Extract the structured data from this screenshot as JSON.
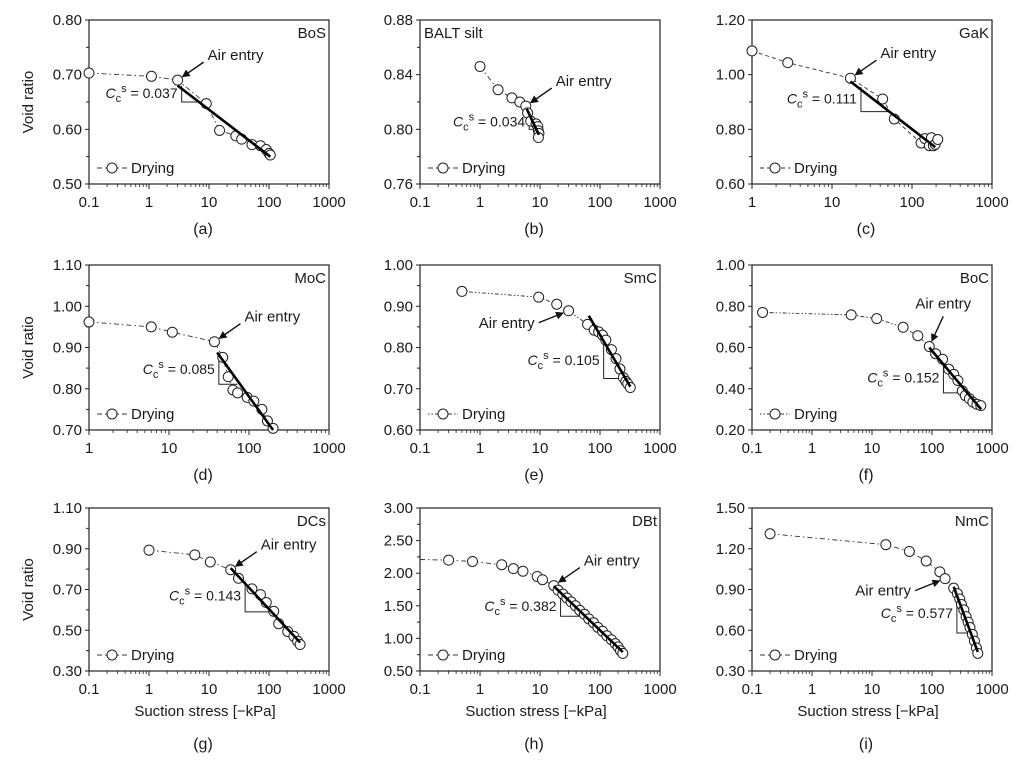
{
  "figure": {
    "y_axis_title": "Void ratio",
    "x_axis_title": "Suction stress [−kPa]",
    "legend_label": "Drying",
    "air_entry_label": "Air entry",
    "cc_symbol": "C",
    "cc_sub": "c",
    "cc_sup": "s"
  },
  "chart_data": [
    {
      "type": "scatter",
      "panel": "(a)",
      "soil": "BoS",
      "xscale": "log",
      "xlim": [
        0.1,
        1000
      ],
      "xticks": [
        "0.1",
        "1",
        "10",
        "100",
        "1000"
      ],
      "ylim": [
        0.5,
        0.8
      ],
      "yticks": [
        "0.50",
        "0.60",
        "0.70",
        "0.80"
      ],
      "ylabel": "Void ratio",
      "xlabel": "",
      "legend": "Drying",
      "line_style": "dash-dot",
      "x": [
        0.1,
        1.1,
        3.0,
        9.0,
        15,
        28,
        35,
        52,
        72,
        90,
        100,
        105
      ],
      "y": [
        0.703,
        0.697,
        0.69,
        0.647,
        0.598,
        0.588,
        0.582,
        0.572,
        0.57,
        0.563,
        0.556,
        0.553
      ],
      "air_entry": {
        "x": 3.0,
        "y": 0.69
      },
      "fit": {
        "x": [
          3.0,
          105
        ],
        "y": [
          0.68,
          0.55
        ]
      },
      "triangle": {
        "x": [
          3.5,
          10
        ],
        "y": [
          0.68,
          0.65
        ]
      },
      "cc_value": "0.037",
      "air_entry_text_pos": "right"
    },
    {
      "type": "scatter",
      "panel": "(b)",
      "soil": "BALT silt",
      "xscale": "log",
      "xlim": [
        0.1,
        1000
      ],
      "xticks": [
        "0.1",
        "1",
        "10",
        "100",
        "1000"
      ],
      "ylim": [
        0.76,
        0.88
      ],
      "yticks": [
        "0.76",
        "0.80",
        "0.84",
        "0.88"
      ],
      "ylabel": "",
      "xlabel": "",
      "legend": "Drying",
      "line_style": "dash-dot",
      "x": [
        1.0,
        2.0,
        3.4,
        4.6,
        5.8,
        6.2,
        7.0,
        8.6,
        9.2,
        9.4,
        9.6,
        9.4
      ],
      "y": [
        0.846,
        0.829,
        0.823,
        0.82,
        0.817,
        0.812,
        0.806,
        0.804,
        0.802,
        0.799,
        0.797,
        0.794
      ],
      "air_entry": {
        "x": 5.8,
        "y": 0.817
      },
      "fit": {
        "x": [
          6.0,
          9.6
        ],
        "y": [
          0.815,
          0.796
        ]
      },
      "triangle": {
        "x": [
          6.6,
          9.0
        ],
        "y": [
          0.81,
          0.8
        ]
      },
      "cc_value": "0.034",
      "air_entry_text_pos": "right"
    },
    {
      "type": "scatter",
      "panel": "(c)",
      "soil": "GaK",
      "xscale": "log",
      "xlim": [
        1,
        1000
      ],
      "xticks": [
        "1",
        "10",
        "100",
        "1000"
      ],
      "ylim": [
        0.6,
        1.2
      ],
      "yticks": [
        "0.60",
        "0.80",
        "1.00",
        "1.20"
      ],
      "ylabel": "",
      "xlabel": "",
      "legend": "Drying",
      "line_style": "dashed",
      "x": [
        1.0,
        2.8,
        17,
        43,
        60,
        130,
        145,
        165,
        175,
        185,
        195,
        210
      ],
      "y": [
        1.087,
        1.044,
        0.987,
        0.911,
        0.838,
        0.75,
        0.766,
        0.74,
        0.769,
        0.74,
        0.745,
        0.763
      ],
      "air_entry": {
        "x": 17,
        "y": 0.987
      },
      "fit": {
        "x": [
          17,
          195
        ],
        "y": [
          0.975,
          0.735
        ]
      },
      "triangle": {
        "x": [
          23,
          55
        ],
        "y": [
          0.955,
          0.865
        ]
      },
      "cc_value": "0.111",
      "air_entry_text_pos": "right"
    },
    {
      "type": "scatter",
      "panel": "(d)",
      "soil": "MoC",
      "xscale": "log",
      "xlim": [
        1,
        1000
      ],
      "xticks": [
        "1",
        "10",
        "100",
        "1000"
      ],
      "ylim": [
        0.7,
        1.1
      ],
      "yticks": [
        "0.70",
        "0.80",
        "0.90",
        "1.00",
        "1.10"
      ],
      "ylabel": "Void ratio",
      "xlabel": "",
      "legend": "Drying",
      "line_style": "dash-dot",
      "x": [
        1.0,
        6.0,
        11,
        37,
        47,
        55,
        63,
        72,
        95,
        115,
        145,
        170,
        200
      ],
      "y": [
        0.962,
        0.95,
        0.937,
        0.914,
        0.876,
        0.829,
        0.797,
        0.79,
        0.779,
        0.77,
        0.75,
        0.722,
        0.704
      ],
      "air_entry": {
        "x": 37,
        "y": 0.914
      },
      "fit": {
        "x": [
          40,
          200
        ],
        "y": [
          0.888,
          0.7
        ]
      },
      "triangle": {
        "x": [
          42,
          72
        ],
        "y": [
          0.88,
          0.811
        ]
      },
      "cc_value": "0.085",
      "air_entry_text_pos": "right"
    },
    {
      "type": "scatter",
      "panel": "(e)",
      "soil": "SmC",
      "xscale": "log",
      "xlim": [
        0.1,
        1000
      ],
      "xticks": [
        "0.1",
        "1",
        "10",
        "100",
        "1000"
      ],
      "ylim": [
        0.6,
        1.0
      ],
      "yticks": [
        "0.60",
        "0.70",
        "0.80",
        "0.90",
        "1.00"
      ],
      "ylabel": "",
      "xlabel": "",
      "legend": "Drying",
      "line_style": "dotted-dash",
      "x": [
        0.5,
        9.5,
        19,
        30,
        62,
        80,
        95,
        110,
        125,
        155,
        185,
        215,
        245,
        270,
        290,
        320
      ],
      "y": [
        0.936,
        0.922,
        0.905,
        0.889,
        0.856,
        0.842,
        0.838,
        0.83,
        0.818,
        0.795,
        0.773,
        0.748,
        0.727,
        0.718,
        0.712,
        0.703
      ],
      "air_entry": {
        "x": 30,
        "y": 0.889
      },
      "fit": {
        "x": [
          65,
          320
        ],
        "y": [
          0.877,
          0.705
        ]
      },
      "triangle": {
        "x": [
          115,
          240
        ],
        "y": [
          0.81,
          0.725
        ]
      },
      "cc_value": "0.105",
      "air_entry_text_pos": "left"
    },
    {
      "type": "scatter",
      "panel": "(f)",
      "soil": "BoC",
      "xscale": "log",
      "xlim": [
        0.1,
        1000
      ],
      "xticks": [
        "0.1",
        "1",
        "10",
        "100",
        "1000"
      ],
      "ylim": [
        0.2,
        1.0
      ],
      "yticks": [
        "0.20",
        "0.40",
        "0.60",
        "0.80",
        "1.00"
      ],
      "ylabel": "",
      "xlabel": "",
      "legend": "Drying",
      "line_style": "dotted-dash",
      "x": [
        0.15,
        4.5,
        12,
        33,
        58,
        90,
        115,
        150,
        190,
        230,
        270,
        320,
        360,
        420,
        480,
        560,
        650
      ],
      "y": [
        0.77,
        0.758,
        0.74,
        0.698,
        0.657,
        0.605,
        0.57,
        0.543,
        0.495,
        0.47,
        0.44,
        0.39,
        0.367,
        0.352,
        0.335,
        0.325,
        0.318
      ],
      "air_entry": {
        "x": 90,
        "y": 0.605
      },
      "fit": {
        "x": [
          90,
          660
        ],
        "y": [
          0.6,
          0.3
        ]
      },
      "triangle": {
        "x": [
          155,
          340
        ],
        "y": [
          0.52,
          0.38
        ]
      },
      "cc_value": "0.152",
      "air_entry_text_pos": "above"
    },
    {
      "type": "scatter",
      "panel": "(g)",
      "soil": "DCs",
      "xscale": "log",
      "xlim": [
        0.1,
        1000
      ],
      "xticks": [
        "0.1",
        "1",
        "10",
        "100",
        "1000"
      ],
      "ylim": [
        0.3,
        1.1
      ],
      "yticks": [
        "0.30",
        "0.50",
        "0.70",
        "0.90",
        "1.10"
      ],
      "ylabel": "Void ratio",
      "xlabel": "Suction stress [−kPa]",
      "legend": "Drying",
      "line_style": "dash-dot",
      "x": [
        1.0,
        5.8,
        10.5,
        23,
        31,
        52,
        72,
        90,
        120,
        145,
        205,
        260,
        300,
        330
      ],
      "y": [
        0.893,
        0.87,
        0.835,
        0.797,
        0.755,
        0.703,
        0.675,
        0.636,
        0.593,
        0.532,
        0.494,
        0.47,
        0.446,
        0.43
      ],
      "air_entry": {
        "x": 23,
        "y": 0.797
      },
      "fit": {
        "x": [
          23,
          330
        ],
        "y": [
          0.805,
          0.44
        ]
      },
      "triangle": {
        "x": [
          40,
          100
        ],
        "y": [
          0.74,
          0.59
        ]
      },
      "cc_value": "0.143",
      "air_entry_text_pos": "right"
    },
    {
      "type": "scatter",
      "panel": "(h)",
      "soil": "DBt",
      "xscale": "log",
      "xlim": [
        0.1,
        1000
      ],
      "xticks": [
        "0.1",
        "1",
        "10",
        "100",
        "1000"
      ],
      "ylim": [
        0.5,
        3.0
      ],
      "yticks": [
        "0.50",
        "1.00",
        "1.50",
        "2.00",
        "2.50",
        "3.00"
      ],
      "ylabel": "",
      "xlabel": "Suction stress [−kPa]",
      "legend": "Drying",
      "line_style": "dash-dot",
      "x": [
        0.3,
        0.75,
        2.3,
        3.6,
        5.2,
        9.0,
        11,
        17,
        20,
        24,
        28,
        33,
        39,
        46,
        55,
        65,
        78,
        92,
        110,
        130,
        155,
        180,
        200,
        220,
        240
      ],
      "y": [
        2.2,
        2.18,
        2.13,
        2.07,
        2.03,
        1.95,
        1.9,
        1.81,
        1.74,
        1.68,
        1.62,
        1.56,
        1.5,
        1.43,
        1.37,
        1.3,
        1.24,
        1.17,
        1.11,
        1.04,
        0.98,
        0.92,
        0.87,
        0.81,
        0.77
      ],
      "air_entry": {
        "x": 17,
        "y": 1.81
      },
      "fit": {
        "x": [
          17,
          240
        ],
        "y": [
          1.8,
          0.79
        ]
      },
      "triangle": {
        "x": [
          22,
          48
        ],
        "y": [
          1.62,
          1.34
        ]
      },
      "cc_value": "0.382",
      "air_entry_text_pos": "right"
    },
    {
      "type": "scatter",
      "panel": "(i)",
      "soil": "NmC",
      "xscale": "log",
      "xlim": [
        0.1,
        1000
      ],
      "xticks": [
        "0.1",
        "1",
        "10",
        "100",
        "1000"
      ],
      "ylim": [
        0.3,
        1.5
      ],
      "yticks": [
        "0.30",
        "0.60",
        "0.90",
        "1.20",
        "1.50"
      ],
      "ylabel": "",
      "xlabel": "Suction stress [−kPa]",
      "legend": "Drying",
      "line_style": "dash-dot",
      "x": [
        0.2,
        17,
        42,
        80,
        135,
        165,
        230,
        265,
        290,
        310,
        340,
        370,
        400,
        430,
        470,
        510,
        550,
        580
      ],
      "y": [
        1.31,
        1.23,
        1.18,
        1.11,
        1.03,
        0.98,
        0.91,
        0.87,
        0.83,
        0.79,
        0.75,
        0.7,
        0.66,
        0.62,
        0.57,
        0.52,
        0.47,
        0.43
      ],
      "air_entry": {
        "x": 165,
        "y": 0.98
      },
      "fit": {
        "x": [
          230,
          580
        ],
        "y": [
          0.92,
          0.44
        ]
      },
      "triangle": {
        "x": [
          260,
          420
        ],
        "y": [
          0.86,
          0.58
        ]
      },
      "cc_value": "0.577",
      "air_entry_text_pos": "left"
    }
  ]
}
